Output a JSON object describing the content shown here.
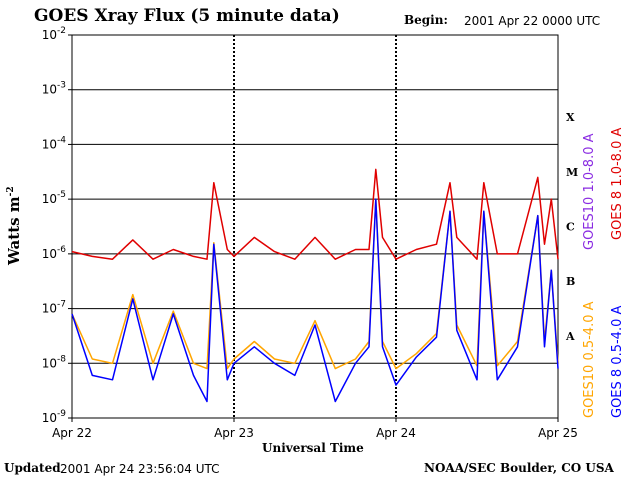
{
  "header": {
    "title": "GOES Xray Flux (5 minute data)",
    "begin_label": "Begin:",
    "begin_value": "2001 Apr 22 0000 UTC"
  },
  "footer": {
    "updated_label": "Updated",
    "updated_value": "2001 Apr 24 23:56:04 UTC",
    "credit": "NOAA/SEC Boulder, CO USA"
  },
  "colors": {
    "goes8_long": "#e00000",
    "goes10_long": "#8a2be2",
    "goes8_short": "#0000ff",
    "goes10_short": "#ffa500"
  },
  "chart_data": {
    "type": "line",
    "title": "GOES Xray Flux (5 minute data)",
    "xlabel": "Universal Time",
    "ylabel": "Watts m",
    "ylabel_exponent": "-2",
    "y_scale": "log",
    "ylim": [
      1e-09,
      0.01
    ],
    "y_ticks": [
      {
        "base": "10",
        "exp": "-9",
        "value": 1e-09
      },
      {
        "base": "10",
        "exp": "-8",
        "value": 1e-08
      },
      {
        "base": "10",
        "exp": "-7",
        "value": 1e-07
      },
      {
        "base": "10",
        "exp": "-6",
        "value": 1e-06
      },
      {
        "base": "10",
        "exp": "-5",
        "value": 1e-05
      },
      {
        "base": "10",
        "exp": "-4",
        "value": 0.0001
      },
      {
        "base": "10",
        "exp": "-3",
        "value": 0.001
      },
      {
        "base": "10",
        "exp": "-2",
        "value": 0.01
      }
    ],
    "xlim": [
      "2001-04-22T00:00",
      "2001-04-25T00:00"
    ],
    "x_ticks": [
      {
        "label": "Apr 22",
        "value": "2001-04-22T00:00"
      },
      {
        "label": "Apr 23",
        "value": "2001-04-23T00:00"
      },
      {
        "label": "Apr 24",
        "value": "2001-04-24T00:00"
      },
      {
        "label": "Apr 25",
        "value": "2001-04-25T00:00"
      }
    ],
    "flare_classes": [
      {
        "label": "A",
        "value": 3.16e-08
      },
      {
        "label": "B",
        "value": 3.16e-07
      },
      {
        "label": "C",
        "value": 3.16e-06
      },
      {
        "label": "M",
        "value": 3.16e-05
      },
      {
        "label": "X",
        "value": 0.000316
      }
    ],
    "grid": "horizontal lines at each decade from 1e-8 to 1e-3; dotted vertical day separators",
    "legend_placement": "right, rotated vertical",
    "series": [
      {
        "name": "GOES 8 1.0-8.0 A",
        "color": "#e00000",
        "t": [
          "2001-04-22T00:00",
          "2001-04-22T03:00",
          "2001-04-22T06:00",
          "2001-04-22T09:00",
          "2001-04-22T12:00",
          "2001-04-22T15:00",
          "2001-04-22T18:00",
          "2001-04-22T20:00",
          "2001-04-22T21:00",
          "2001-04-22T23:00",
          "2001-04-23T00:00",
          "2001-04-23T03:00",
          "2001-04-23T06:00",
          "2001-04-23T09:00",
          "2001-04-23T12:00",
          "2001-04-23T15:00",
          "2001-04-23T18:00",
          "2001-04-23T20:00",
          "2001-04-23T21:00",
          "2001-04-23T22:00",
          "2001-04-24T00:00",
          "2001-04-24T03:00",
          "2001-04-24T06:00",
          "2001-04-24T08:00",
          "2001-04-24T09:00",
          "2001-04-24T12:00",
          "2001-04-24T13:00",
          "2001-04-24T15:00",
          "2001-04-24T18:00",
          "2001-04-24T21:00",
          "2001-04-24T22:00",
          "2001-04-24T23:00",
          "2001-04-25T00:00"
        ],
        "y": [
          1.1e-06,
          9e-07,
          8e-07,
          1.8e-06,
          8e-07,
          1.2e-06,
          9e-07,
          8e-07,
          2e-05,
          1.2e-06,
          9e-07,
          2e-06,
          1.1e-06,
          8e-07,
          2e-06,
          8e-07,
          1.2e-06,
          1.2e-06,
          3.5e-05,
          2e-06,
          8e-07,
          1.2e-06,
          1.5e-06,
          2e-05,
          2e-06,
          8e-07,
          2e-05,
          1e-06,
          1e-06,
          2.5e-05,
          1.5e-06,
          1e-05,
          8e-07
        ]
      },
      {
        "name": "GOES 8 0.5-4.0 A",
        "color": "#0000ff",
        "t": [
          "2001-04-22T00:00",
          "2001-04-22T03:00",
          "2001-04-22T06:00",
          "2001-04-22T09:00",
          "2001-04-22T12:00",
          "2001-04-22T15:00",
          "2001-04-22T18:00",
          "2001-04-22T20:00",
          "2001-04-22T21:00",
          "2001-04-22T23:00",
          "2001-04-23T00:00",
          "2001-04-23T03:00",
          "2001-04-23T06:00",
          "2001-04-23T09:00",
          "2001-04-23T12:00",
          "2001-04-23T15:00",
          "2001-04-23T18:00",
          "2001-04-23T20:00",
          "2001-04-23T21:00",
          "2001-04-23T22:00",
          "2001-04-24T00:00",
          "2001-04-24T03:00",
          "2001-04-24T06:00",
          "2001-04-24T08:00",
          "2001-04-24T09:00",
          "2001-04-24T12:00",
          "2001-04-24T13:00",
          "2001-04-24T15:00",
          "2001-04-24T18:00",
          "2001-04-24T21:00",
          "2001-04-24T22:00",
          "2001-04-24T23:00",
          "2001-04-25T00:00"
        ],
        "y": [
          8e-08,
          6e-09,
          5e-09,
          1.5e-07,
          5e-09,
          8e-08,
          6e-09,
          2e-09,
          1.5e-06,
          5e-09,
          1e-08,
          2e-08,
          1e-08,
          6e-09,
          5e-08,
          2e-09,
          1e-08,
          2e-08,
          1e-05,
          2e-08,
          4e-09,
          1.3e-08,
          3e-08,
          6e-06,
          4e-08,
          5e-09,
          6e-06,
          5e-09,
          2e-08,
          5e-06,
          2e-08,
          5e-07,
          8e-09
        ]
      },
      {
        "name": "GOES10 1.0-8.0 A",
        "color": "#8a2be2",
        "t": [],
        "y": []
      },
      {
        "name": "GOES10 0.5-4.0 A",
        "color": "#ffa500",
        "t": [
          "2001-04-22T00:00",
          "2001-04-22T03:00",
          "2001-04-22T06:00",
          "2001-04-22T09:00",
          "2001-04-22T12:00",
          "2001-04-22T15:00",
          "2001-04-22T18:00",
          "2001-04-22T20:00",
          "2001-04-22T21:00",
          "2001-04-22T23:00",
          "2001-04-23T00:00",
          "2001-04-23T03:00",
          "2001-04-23T06:00",
          "2001-04-23T09:00",
          "2001-04-23T12:00",
          "2001-04-23T15:00",
          "2001-04-23T18:00",
          "2001-04-23T20:00",
          "2001-04-23T21:00",
          "2001-04-23T22:00",
          "2001-04-24T00:00",
          "2001-04-24T03:00",
          "2001-04-24T06:00",
          "2001-04-24T08:00",
          "2001-04-24T09:00",
          "2001-04-24T12:00",
          "2001-04-24T13:00",
          "2001-04-24T15:00",
          "2001-04-24T18:00",
          "2001-04-24T21:00",
          "2001-04-24T22:00",
          "2001-04-24T23:00",
          "2001-04-25T00:00"
        ],
        "y": [
          8e-08,
          1.2e-08,
          1e-08,
          1.8e-07,
          1e-08,
          9e-08,
          1e-08,
          8e-09,
          1.6e-06,
          8e-09,
          1.2e-08,
          2.5e-08,
          1.2e-08,
          1e-08,
          6e-08,
          8e-09,
          1.2e-08,
          2.5e-08,
          1e-05,
          2.5e-08,
          8e-09,
          1.5e-08,
          3.5e-08,
          6e-06,
          5e-08,
          9e-09,
          6e-06,
          9e-09,
          2.5e-08,
          5e-06,
          2.5e-08,
          5e-07,
          1e-08
        ]
      }
    ]
  }
}
